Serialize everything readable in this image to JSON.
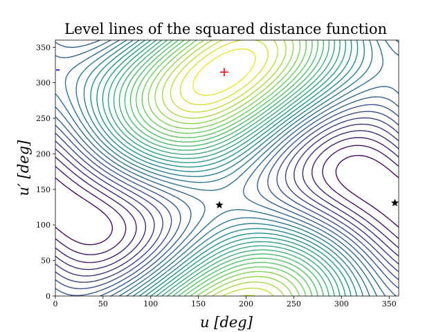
{
  "chart_data": {
    "type": "contour",
    "title": "Level lines of the squared distance function",
    "xlabel": "u [deg]",
    "ylabel": "u′ [deg]",
    "xlim": [
      0,
      360
    ],
    "ylim": [
      0,
      360
    ],
    "xticks": [
      0,
      50,
      100,
      150,
      200,
      250,
      300,
      350
    ],
    "yticks": [
      0,
      50,
      100,
      150,
      200,
      250,
      300,
      350
    ],
    "colormap": "viridis",
    "colors": {
      "low": "#440154",
      "mid": "#21918c",
      "high": "#fde725",
      "max_marker": "#ff0000",
      "min_marker": "#000000",
      "edge_mark": "#0000ff"
    },
    "grid": false,
    "legend": "none",
    "maximum": {
      "u": 177,
      "u_prime": 315,
      "marker": "plus"
    },
    "critical_points": [
      {
        "u": 172,
        "u_prime": 128,
        "marker": "star"
      },
      {
        "u": 356,
        "u_prime": 131,
        "marker": "star"
      }
    ],
    "edge_tick": {
      "u": 0,
      "u_prime": 318
    }
  }
}
